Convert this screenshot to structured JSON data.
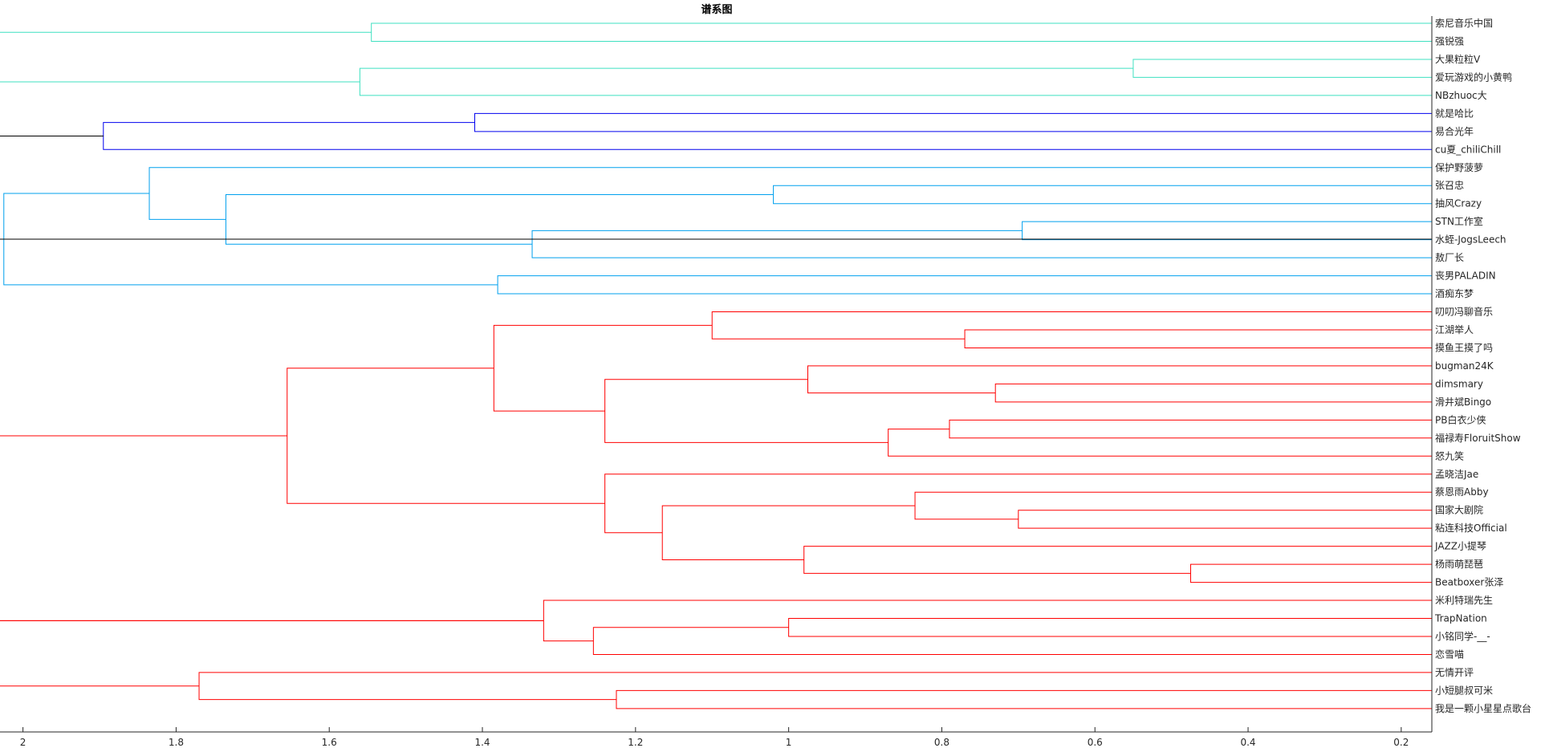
{
  "chart_data": {
    "type": "dendrogram",
    "title": "谱系图",
    "orientation": "right",
    "xlim": [
      2.03,
      0.16
    ],
    "ticks": [
      2,
      1.8,
      1.6,
      1.4,
      1.2,
      1,
      0.8,
      0.6,
      0.4,
      0.2
    ],
    "tick_labels": [
      "2",
      "1.8",
      "1.6",
      "1.4",
      "1.2",
      "1",
      "0.8",
      "0.6",
      "0.4",
      "0.2"
    ],
    "leaf_base": 0.16,
    "leaves": [
      "索尼音乐中国",
      "强锐强",
      "大果粒粒V",
      "爱玩游戏的小黄鸭",
      "NBzhuoc大",
      "就是哈比",
      "易合光年",
      "cu夏_chiliChill",
      "保护野菠萝",
      "张召忠",
      "抽风Crazy",
      "STN工作室",
      "水蛭-JogsLeech",
      "敖厂长",
      "丧男PALADIN",
      "酒痴东梦",
      "叨叨冯聊音乐",
      "江湖举人",
      "摸鱼王摸了吗",
      "bugman24K",
      "dimsmary",
      "滑井斌Bingo",
      "PB白衣少侠",
      "福禄寿FloruitShow",
      "怒九笑",
      "孟晓洁Jae",
      "蔡恩雨Abby",
      "国家大剧院",
      "粘连科技Official",
      "JAZZ小提琴",
      "杨雨萌琵琶",
      "Beatboxer张泽",
      "米利特瑞先生",
      "TrapNation",
      "小铭同学-__-",
      "恋雪喵",
      "无情开评",
      "小短腿叔可米",
      "我是一颗小星星点歌台"
    ],
    "links": [
      {
        "a": 3,
        "b": 4,
        "h": 0.55,
        "color": "#3fe0c0"
      },
      {
        "a": 1,
        "b": 2,
        "h": 1.545,
        "color": "#3fe0c0"
      },
      {
        "a": 3.5,
        "b": 5,
        "h": 1.56,
        "color": "#3fe0c0"
      },
      {
        "a": 1.5,
        "b": 4.25,
        "h": 2.05,
        "color": "#3fe0c0"
      },
      {
        "a": 6,
        "b": 7,
        "h": 1.41,
        "color": "#0000ee"
      },
      {
        "a": 6.5,
        "b": 8,
        "h": 1.895,
        "color": "#0000ee"
      },
      {
        "a": 12,
        "b": 13,
        "h": 0.695,
        "color": "#00a0ee"
      },
      {
        "a": 10,
        "b": 11,
        "h": 1.02,
        "color": "#00a0ee"
      },
      {
        "a": 12.5,
        "b": 14,
        "h": 1.335,
        "color": "#00a0ee"
      },
      {
        "a": 10.5,
        "b": 13.25,
        "h": 1.735,
        "color": "#00a0ee"
      },
      {
        "a": 9,
        "b": 11.875,
        "h": 1.835,
        "color": "#00a0ee"
      },
      {
        "a": 15,
        "b": 16,
        "h": 1.38,
        "color": "#00a0ee"
      },
      {
        "a": 10.4375,
        "b": 15.5,
        "h": 2.025,
        "color": "#00a0ee"
      },
      {
        "a": 7.25,
        "b": 12.97,
        "h": 2.06,
        "color": "#000000"
      },
      {
        "a": 18,
        "b": 19,
        "h": 0.77,
        "color": "#ff0000"
      },
      {
        "a": 17,
        "b": 18.5,
        "h": 1.1,
        "color": "#ff0000"
      },
      {
        "a": 21,
        "b": 22,
        "h": 0.73,
        "color": "#ff0000"
      },
      {
        "a": 20,
        "b": 21.5,
        "h": 0.975,
        "color": "#ff0000"
      },
      {
        "a": 23,
        "b": 24,
        "h": 0.79,
        "color": "#ff0000"
      },
      {
        "a": 23.5,
        "b": 25,
        "h": 0.87,
        "color": "#ff0000"
      },
      {
        "a": 20.75,
        "b": 24.25,
        "h": 1.24,
        "color": "#ff0000"
      },
      {
        "a": 17.75,
        "b": 22.5,
        "h": 1.385,
        "color": "#ff0000"
      },
      {
        "a": 28,
        "b": 29,
        "h": 0.7,
        "color": "#ff0000"
      },
      {
        "a": 27,
        "b": 28.5,
        "h": 0.835,
        "color": "#ff0000"
      },
      {
        "a": 31,
        "b": 32,
        "h": 0.475,
        "color": "#ff0000"
      },
      {
        "a": 30,
        "b": 31.5,
        "h": 0.98,
        "color": "#ff0000"
      },
      {
        "a": 27.75,
        "b": 30.75,
        "h": 1.165,
        "color": "#ff0000"
      },
      {
        "a": 26,
        "b": 29.25,
        "h": 1.24,
        "color": "#ff0000"
      },
      {
        "a": 20.125,
        "b": 27.625,
        "h": 1.655,
        "color": "#ff0000"
      },
      {
        "a": 34,
        "b": 35,
        "h": 1.0,
        "color": "#ff0000"
      },
      {
        "a": 34.5,
        "b": 36,
        "h": 1.255,
        "color": "#ff0000"
      },
      {
        "a": 33,
        "b": 35.25,
        "h": 1.32,
        "color": "#ff0000"
      },
      {
        "a": 38,
        "b": 39,
        "h": 1.225,
        "color": "#ff0000"
      },
      {
        "a": 37,
        "b": 38.5,
        "h": 1.77,
        "color": "#ff0000"
      },
      {
        "a": 23.875,
        "b": 34.125,
        "h": 2.06,
        "color": "#ff0000"
      },
      {
        "a": 37.75,
        "b": 34.125,
        "h": 2.06,
        "color": "#ff0000"
      }
    ]
  }
}
